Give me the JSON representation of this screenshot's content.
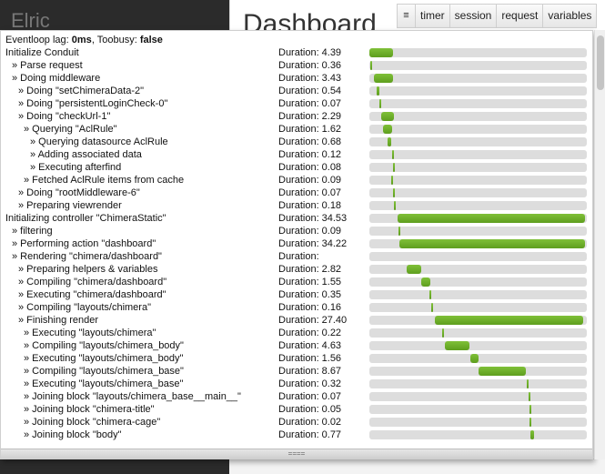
{
  "app": {
    "sidebar_brand": "Elric",
    "page_title": "Dashboard"
  },
  "toolbar": {
    "menu_icon": "≡",
    "buttons": [
      "timer",
      "session",
      "request",
      "variables"
    ]
  },
  "eventloop": {
    "lag_label": "Eventloop lag:",
    "lag_value": "0ms",
    "toobusy_label": "Toobusy:",
    "toobusy_value": "false"
  },
  "duration_label": "Duration:",
  "colors": {
    "bar_fill": "#6aaf26",
    "bar_track": "#dddddd"
  },
  "timeline": {
    "total": 40.0
  },
  "rows": [
    {
      "label": "Initialize Conduit",
      "indent": 0,
      "duration": "4.39",
      "start": 0.0,
      "value": 4.39
    },
    {
      "label": "» Parse request",
      "indent": 1,
      "duration": "0.36",
      "start": 0.2,
      "value": 0.36
    },
    {
      "label": "» Doing middleware",
      "indent": 1,
      "duration": "3.43",
      "start": 0.9,
      "value": 3.43
    },
    {
      "label": "» Doing \"setChimeraData-2\"",
      "indent": 2,
      "duration": "0.54",
      "start": 1.3,
      "value": 0.54
    },
    {
      "label": "» Doing \"persistentLoginCheck-0\"",
      "indent": 2,
      "duration": "0.07",
      "start": 1.9,
      "value": 0.07
    },
    {
      "label": "» Doing \"checkUrl-1\"",
      "indent": 2,
      "duration": "2.29",
      "start": 2.2,
      "value": 2.29
    },
    {
      "label": "» Querying \"AclRule\"",
      "indent": 3,
      "duration": "1.62",
      "start": 2.5,
      "value": 1.62
    },
    {
      "label": "» Querying datasource AclRule",
      "indent": 4,
      "duration": "0.68",
      "start": 3.3,
      "value": 0.68
    },
    {
      "label": "» Adding associated data",
      "indent": 4,
      "duration": "0.12",
      "start": 4.1,
      "value": 0.12
    },
    {
      "label": "» Executing afterfind",
      "indent": 4,
      "duration": "0.08",
      "start": 4.3,
      "value": 0.08
    },
    {
      "label": "» Fetched AclRule items from cache",
      "indent": 3,
      "duration": "0.09",
      "start": 4.0,
      "value": 0.09
    },
    {
      "label": "» Doing \"rootMiddleware-6\"",
      "indent": 2,
      "duration": "0.07",
      "start": 4.4,
      "value": 0.07
    },
    {
      "label": "» Preparing viewrender",
      "indent": 2,
      "duration": "0.18",
      "start": 4.5,
      "value": 0.18
    },
    {
      "label": "Initializing controller \"ChimeraStatic\"",
      "indent": 0,
      "duration": "34.53",
      "start": 5.1,
      "value": 34.53
    },
    {
      "label": "» filtering",
      "indent": 1,
      "duration": "0.09",
      "start": 5.3,
      "value": 0.09
    },
    {
      "label": "» Performing action \"dashboard\"",
      "indent": 1,
      "duration": "34.22",
      "start": 5.5,
      "value": 34.22
    },
    {
      "label": "» Rendering \"chimera/dashboard\"",
      "indent": 1,
      "duration": "",
      "start": null,
      "value": null
    },
    {
      "label": "» Preparing helpers & variables",
      "indent": 2,
      "duration": "2.82",
      "start": 6.8,
      "value": 2.82
    },
    {
      "label": "» Compiling \"chimera/dashboard\"",
      "indent": 2,
      "duration": "1.55",
      "start": 9.6,
      "value": 1.55
    },
    {
      "label": "» Executing \"chimera/dashboard\"",
      "indent": 2,
      "duration": "0.35",
      "start": 11.1,
      "value": 0.35
    },
    {
      "label": "» Compiling \"layouts/chimera\"",
      "indent": 2,
      "duration": "0.16",
      "start": 11.4,
      "value": 0.16
    },
    {
      "label": "» Finishing render",
      "indent": 2,
      "duration": "27.40",
      "start": 12.0,
      "value": 27.4
    },
    {
      "label": "» Executing \"layouts/chimera\"",
      "indent": 3,
      "duration": "0.22",
      "start": 13.4,
      "value": 0.22
    },
    {
      "label": "» Compiling \"layouts/chimera_body\"",
      "indent": 3,
      "duration": "4.63",
      "start": 13.8,
      "value": 4.63
    },
    {
      "label": "» Executing \"layouts/chimera_body\"",
      "indent": 3,
      "duration": "1.56",
      "start": 18.5,
      "value": 1.56
    },
    {
      "label": "» Compiling \"layouts/chimera_base\"",
      "indent": 3,
      "duration": "8.67",
      "start": 20.1,
      "value": 8.67
    },
    {
      "label": "» Executing \"layouts/chimera_base\"",
      "indent": 3,
      "duration": "0.32",
      "start": 28.9,
      "value": 0.32
    },
    {
      "label": "» Joining block \"layouts/chimera_base__main__\"",
      "indent": 3,
      "duration": "0.07",
      "start": 29.3,
      "value": 0.07
    },
    {
      "label": "» Joining block \"chimera-title\"",
      "indent": 3,
      "duration": "0.05",
      "start": 29.4,
      "value": 0.05
    },
    {
      "label": "» Joining block \"chimera-cage\"",
      "indent": 3,
      "duration": "0.02",
      "start": 29.5,
      "value": 0.02
    },
    {
      "label": "» Joining block \"body\"",
      "indent": 3,
      "duration": "0.77",
      "start": 29.6,
      "value": 0.77
    }
  ],
  "resize_handle": "===="
}
